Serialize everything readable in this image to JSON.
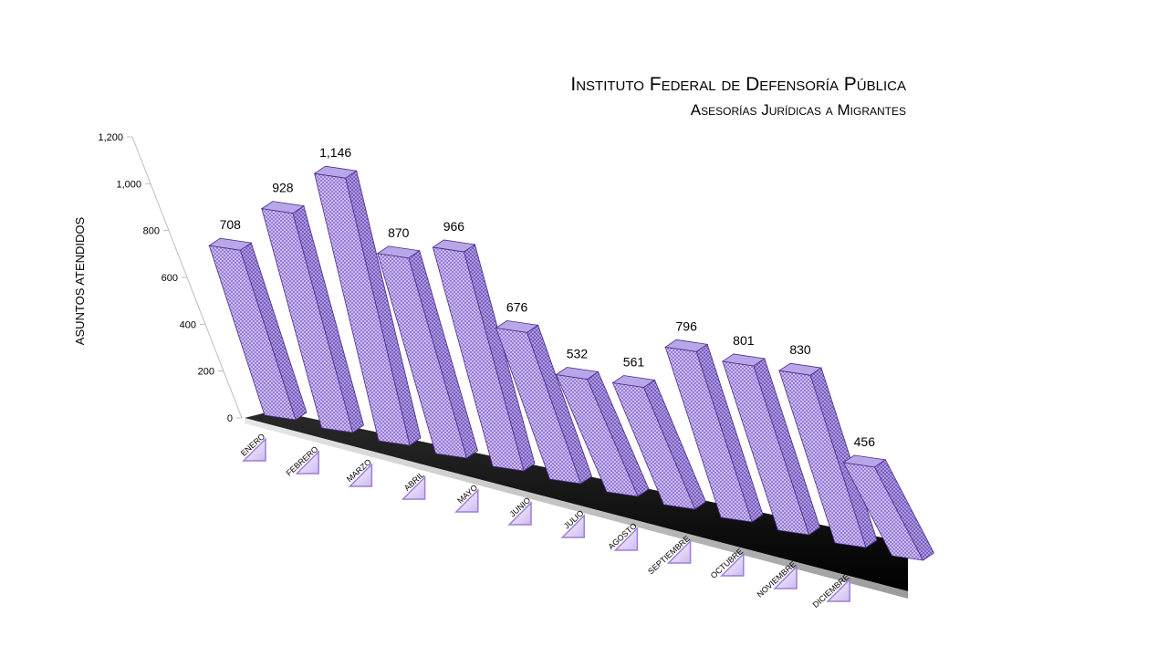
{
  "chart_data": {
    "type": "bar",
    "title": "Instituto Federal de Defensoría Pública",
    "subtitle": "Asesorías Jurídicas a Migrantes",
    "ylabel": "ASUNTOS ATENDIDOS",
    "ylim": [
      0,
      1200
    ],
    "yticks": [
      "0",
      "200",
      "400",
      "600",
      "800",
      "1,000",
      "1,200"
    ],
    "categories": [
      "ENERO",
      "FEBRERO",
      "MARZO",
      "ABRIL",
      "MAYO",
      "JUNIO",
      "JULIO",
      "AGOSTO",
      "SEPTIEMBRE",
      "OCTUBRE",
      "NOVIEMBRE",
      "DICIEMBRE"
    ],
    "values": [
      708,
      928,
      1146,
      870,
      966,
      676,
      532,
      561,
      796,
      801,
      830,
      456
    ],
    "value_labels": [
      "708",
      "928",
      "1,146",
      "870",
      "966",
      "676",
      "532",
      "561",
      "796",
      "801",
      "830",
      "456"
    ],
    "bar_color": "#7f5fc8",
    "bar_outline": "#4a2d8a",
    "floor_color": "#1a1a1a",
    "legend": "none",
    "grid": false
  }
}
